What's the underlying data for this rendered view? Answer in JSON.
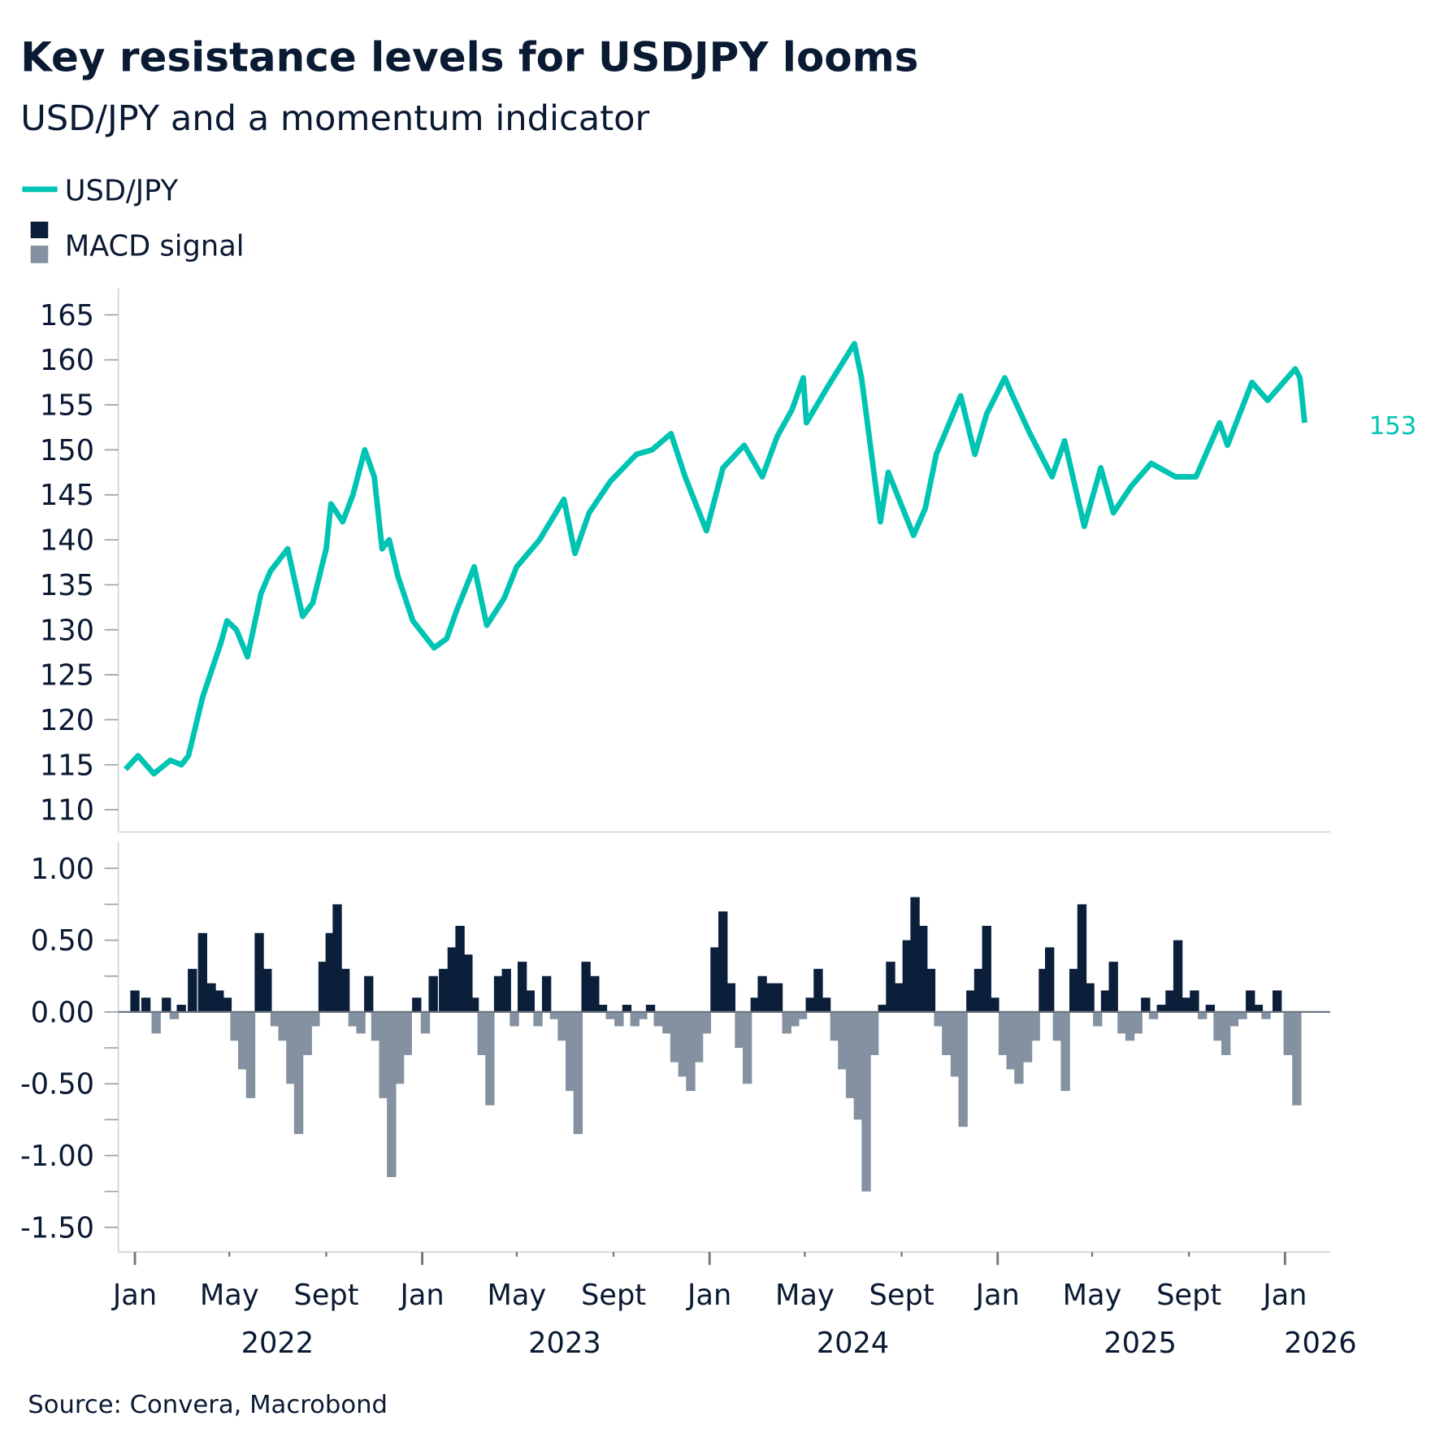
{
  "title": "Key resistance levels for USDJPY looms",
  "subtitle": "USD/JPY and a momentum indicator",
  "source": "Source: Convera, Macrobond",
  "colors": {
    "usdjpy": "#00C4B3",
    "macd_positive": "#0B1F3A",
    "macd_negative": "#8391A0",
    "text": "#0A1A33"
  },
  "chart_data": [
    {
      "type": "line",
      "legend": [
        "USD/JPY"
      ],
      "last_value_label": "153",
      "y_ticks": [
        "165",
        "160",
        "155",
        "150",
        "145",
        "140",
        "135",
        "130",
        "125",
        "120",
        "115",
        "110"
      ],
      "ylim": [
        110,
        165
      ],
      "x_ticks": [
        {
          "label": "Jan",
          "date": "2022-01-01"
        },
        {
          "label": "May",
          "date": "2022-05-01"
        },
        {
          "label": "Sept",
          "date": "2022-09-01"
        },
        {
          "label": "Jan",
          "date": "2023-01-01"
        },
        {
          "label": "May",
          "date": "2023-05-01"
        },
        {
          "label": "Sept",
          "date": "2023-09-01"
        },
        {
          "label": "Jan",
          "date": "2024-01-01"
        },
        {
          "label": "May",
          "date": "2024-05-01"
        },
        {
          "label": "Sept",
          "date": "2024-09-01"
        },
        {
          "label": "Jan",
          "date": "2025-01-01"
        },
        {
          "label": "May",
          "date": "2025-05-01"
        },
        {
          "label": "Sept",
          "date": "2025-09-01"
        },
        {
          "label": "Jan",
          "date": "2026-01-01"
        }
      ],
      "years": [
        {
          "label": "2022",
          "date": "2022-07-01"
        },
        {
          "label": "2023",
          "date": "2023-07-01"
        },
        {
          "label": "2024",
          "date": "2024-07-01"
        },
        {
          "label": "2025",
          "date": "2025-07-01"
        },
        {
          "label": "2026",
          "date": "2026-02-15"
        }
      ],
      "series": [
        {
          "name": "USD/JPY",
          "points": [
            [
              "2021-12-20",
              114.5
            ],
            [
              "2022-01-05",
              116
            ],
            [
              "2022-01-25",
              114
            ],
            [
              "2022-02-15",
              115.5
            ],
            [
              "2022-03-01",
              115
            ],
            [
              "2022-03-10",
              116
            ],
            [
              "2022-03-28",
              122.5
            ],
            [
              "2022-04-20",
              128.5
            ],
            [
              "2022-04-28",
              131
            ],
            [
              "2022-05-10",
              130
            ],
            [
              "2022-05-24",
              127
            ],
            [
              "2022-06-10",
              134
            ],
            [
              "2022-06-22",
              136.5
            ],
            [
              "2022-07-14",
              139
            ],
            [
              "2022-08-02",
              131.5
            ],
            [
              "2022-08-15",
              133
            ],
            [
              "2022-09-01",
              139
            ],
            [
              "2022-09-07",
              144
            ],
            [
              "2022-09-22",
              142
            ],
            [
              "2022-10-05",
              145
            ],
            [
              "2022-10-20",
              150
            ],
            [
              "2022-11-01",
              147
            ],
            [
              "2022-11-11",
              139
            ],
            [
              "2022-11-20",
              140
            ],
            [
              "2022-12-01",
              136
            ],
            [
              "2022-12-20",
              131
            ],
            [
              "2023-01-16",
              128
            ],
            [
              "2023-02-01",
              129
            ],
            [
              "2023-02-13",
              132
            ],
            [
              "2023-03-08",
              137
            ],
            [
              "2023-03-24",
              130.5
            ],
            [
              "2023-04-15",
              133.5
            ],
            [
              "2023-05-01",
              137
            ],
            [
              "2023-05-30",
              140
            ],
            [
              "2023-06-30",
              144.5
            ],
            [
              "2023-07-14",
              138.5
            ],
            [
              "2023-08-01",
              143
            ],
            [
              "2023-08-28",
              146.5
            ],
            [
              "2023-09-30",
              149.5
            ],
            [
              "2023-10-20",
              150
            ],
            [
              "2023-11-13",
              151.8
            ],
            [
              "2023-12-01",
              147
            ],
            [
              "2023-12-28",
              141
            ],
            [
              "2024-01-18",
              148
            ],
            [
              "2024-02-14",
              150.5
            ],
            [
              "2024-03-08",
              147
            ],
            [
              "2024-03-27",
              151.5
            ],
            [
              "2024-04-15",
              154.5
            ],
            [
              "2024-04-29",
              158
            ],
            [
              "2024-05-03",
              153
            ],
            [
              "2024-05-30",
              157
            ],
            [
              "2024-06-26",
              160.8
            ],
            [
              "2024-07-03",
              161.8
            ],
            [
              "2024-07-12",
              158
            ],
            [
              "2024-08-05",
              142
            ],
            [
              "2024-08-15",
              147.5
            ],
            [
              "2024-09-16",
              140.5
            ],
            [
              "2024-10-01",
              143.5
            ],
            [
              "2024-10-15",
              149.5
            ],
            [
              "2024-11-15",
              156
            ],
            [
              "2024-12-03",
              149.5
            ],
            [
              "2024-12-18",
              154
            ],
            [
              "2025-01-10",
              158
            ],
            [
              "2025-01-20",
              156
            ],
            [
              "2025-02-10",
              152
            ],
            [
              "2025-03-11",
              147
            ],
            [
              "2025-03-27",
              151
            ],
            [
              "2025-04-21",
              141.5
            ],
            [
              "2025-05-12",
              148
            ],
            [
              "2025-05-28",
              143
            ],
            [
              "2025-06-20",
              146
            ],
            [
              "2025-07-15",
              148.5
            ],
            [
              "2025-08-15",
              147
            ],
            [
              "2025-09-10",
              147
            ],
            [
              "2025-10-10",
              153
            ],
            [
              "2025-10-20",
              150.5
            ],
            [
              "2025-11-20",
              157.5
            ],
            [
              "2025-12-10",
              155.5
            ],
            [
              "2026-01-14",
              159
            ],
            [
              "2026-01-20",
              158
            ],
            [
              "2026-01-26",
              153
            ]
          ]
        }
      ]
    },
    {
      "type": "bar",
      "legend": [
        "MACD signal"
      ],
      "y_ticks": [
        "1.00",
        "0.50",
        "0.00",
        "-0.50",
        "-1.00",
        "-1.50"
      ],
      "ylim": [
        -1.6,
        1.1
      ],
      "series": [
        {
          "name": "MACD signal",
          "points": [
            [
              "2022-01-01",
              0.15
            ],
            [
              "2022-01-15",
              0.1
            ],
            [
              "2022-01-28",
              -0.15
            ],
            [
              "2022-02-10",
              0.1
            ],
            [
              "2022-02-20",
              -0.05
            ],
            [
              "2022-03-01",
              0.05
            ],
            [
              "2022-03-15",
              0.3
            ],
            [
              "2022-03-28",
              0.55
            ],
            [
              "2022-04-08",
              0.2
            ],
            [
              "2022-04-18",
              0.15
            ],
            [
              "2022-04-28",
              0.1
            ],
            [
              "2022-05-08",
              -0.2
            ],
            [
              "2022-05-18",
              -0.4
            ],
            [
              "2022-05-28",
              -0.6
            ],
            [
              "2022-06-08",
              0.55
            ],
            [
              "2022-06-18",
              0.3
            ],
            [
              "2022-06-28",
              -0.1
            ],
            [
              "2022-07-08",
              -0.2
            ],
            [
              "2022-07-18",
              -0.5
            ],
            [
              "2022-07-28",
              -0.85
            ],
            [
              "2022-08-08",
              -0.3
            ],
            [
              "2022-08-18",
              -0.1
            ],
            [
              "2022-08-28",
              0.35
            ],
            [
              "2022-09-06",
              0.55
            ],
            [
              "2022-09-15",
              0.75
            ],
            [
              "2022-09-25",
              0.3
            ],
            [
              "2022-10-05",
              -0.1
            ],
            [
              "2022-10-15",
              -0.15
            ],
            [
              "2022-10-25",
              0.25
            ],
            [
              "2022-11-03",
              -0.2
            ],
            [
              "2022-11-13",
              -0.6
            ],
            [
              "2022-11-23",
              -1.15
            ],
            [
              "2022-12-03",
              -0.5
            ],
            [
              "2022-12-13",
              -0.3
            ],
            [
              "2022-12-25",
              0.1
            ],
            [
              "2023-01-05",
              -0.15
            ],
            [
              "2023-01-15",
              0.25
            ],
            [
              "2023-01-28",
              0.3
            ],
            [
              "2023-02-08",
              0.45
            ],
            [
              "2023-02-18",
              0.6
            ],
            [
              "2023-02-28",
              0.4
            ],
            [
              "2023-03-08",
              0.1
            ],
            [
              "2023-03-18",
              -0.3
            ],
            [
              "2023-03-28",
              -0.65
            ],
            [
              "2023-04-08",
              0.25
            ],
            [
              "2023-04-18",
              0.3
            ],
            [
              "2023-04-28",
              -0.1
            ],
            [
              "2023-05-08",
              0.35
            ],
            [
              "2023-05-18",
              0.15
            ],
            [
              "2023-05-28",
              -0.1
            ],
            [
              "2023-06-08",
              0.25
            ],
            [
              "2023-06-18",
              -0.05
            ],
            [
              "2023-06-28",
              -0.2
            ],
            [
              "2023-07-08",
              -0.55
            ],
            [
              "2023-07-18",
              -0.85
            ],
            [
              "2023-07-28",
              0.35
            ],
            [
              "2023-08-08",
              0.25
            ],
            [
              "2023-08-18",
              0.05
            ],
            [
              "2023-08-28",
              -0.05
            ],
            [
              "2023-09-08",
              -0.1
            ],
            [
              "2023-09-18",
              0.05
            ],
            [
              "2023-09-28",
              -0.1
            ],
            [
              "2023-10-08",
              -0.05
            ],
            [
              "2023-10-18",
              0.05
            ],
            [
              "2023-10-28",
              -0.1
            ],
            [
              "2023-11-08",
              -0.15
            ],
            [
              "2023-11-18",
              -0.35
            ],
            [
              "2023-11-28",
              -0.45
            ],
            [
              "2023-12-08",
              -0.55
            ],
            [
              "2023-12-18",
              -0.35
            ],
            [
              "2023-12-28",
              -0.15
            ],
            [
              "2024-01-08",
              0.45
            ],
            [
              "2024-01-18",
              0.7
            ],
            [
              "2024-01-28",
              0.2
            ],
            [
              "2024-02-08",
              -0.25
            ],
            [
              "2024-02-18",
              -0.5
            ],
            [
              "2024-02-28",
              0.1
            ],
            [
              "2024-03-08",
              0.25
            ],
            [
              "2024-03-18",
              0.2
            ],
            [
              "2024-03-28",
              0.2
            ],
            [
              "2024-04-08",
              -0.15
            ],
            [
              "2024-04-18",
              -0.1
            ],
            [
              "2024-04-28",
              -0.05
            ],
            [
              "2024-05-08",
              0.1
            ],
            [
              "2024-05-18",
              0.3
            ],
            [
              "2024-05-28",
              0.1
            ],
            [
              "2024-06-08",
              -0.2
            ],
            [
              "2024-06-18",
              -0.4
            ],
            [
              "2024-06-28",
              -0.6
            ],
            [
              "2024-07-08",
              -0.75
            ],
            [
              "2024-07-18",
              -1.25
            ],
            [
              "2024-07-28",
              -0.3
            ],
            [
              "2024-08-08",
              0.05
            ],
            [
              "2024-08-18",
              0.35
            ],
            [
              "2024-08-28",
              0.2
            ],
            [
              "2024-09-08",
              0.5
            ],
            [
              "2024-09-18",
              0.8
            ],
            [
              "2024-09-28",
              0.6
            ],
            [
              "2024-10-08",
              0.3
            ],
            [
              "2024-10-18",
              -0.1
            ],
            [
              "2024-10-28",
              -0.3
            ],
            [
              "2024-11-08",
              -0.45
            ],
            [
              "2024-11-18",
              -0.8
            ],
            [
              "2024-11-28",
              0.15
            ],
            [
              "2024-12-08",
              0.3
            ],
            [
              "2024-12-18",
              0.6
            ],
            [
              "2024-12-28",
              0.1
            ],
            [
              "2025-01-08",
              -0.3
            ],
            [
              "2025-01-18",
              -0.4
            ],
            [
              "2025-01-28",
              -0.5
            ],
            [
              "2025-02-08",
              -0.35
            ],
            [
              "2025-02-18",
              -0.2
            ],
            [
              "2025-02-28",
              0.3
            ],
            [
              "2025-03-08",
              0.45
            ],
            [
              "2025-03-18",
              -0.2
            ],
            [
              "2025-03-28",
              -0.55
            ],
            [
              "2025-04-08",
              0.3
            ],
            [
              "2025-04-18",
              0.75
            ],
            [
              "2025-04-28",
              0.2
            ],
            [
              "2025-05-08",
              -0.1
            ],
            [
              "2025-05-18",
              0.15
            ],
            [
              "2025-05-28",
              0.35
            ],
            [
              "2025-06-08",
              -0.15
            ],
            [
              "2025-06-18",
              -0.2
            ],
            [
              "2025-06-28",
              -0.15
            ],
            [
              "2025-07-08",
              0.1
            ],
            [
              "2025-07-18",
              -0.05
            ],
            [
              "2025-07-28",
              0.05
            ],
            [
              "2025-08-08",
              0.15
            ],
            [
              "2025-08-18",
              0.5
            ],
            [
              "2025-08-28",
              0.1
            ],
            [
              "2025-09-08",
              0.15
            ],
            [
              "2025-09-18",
              -0.05
            ],
            [
              "2025-09-28",
              0.05
            ],
            [
              "2025-10-08",
              -0.2
            ],
            [
              "2025-10-18",
              -0.3
            ],
            [
              "2025-10-28",
              -0.1
            ],
            [
              "2025-11-08",
              -0.05
            ],
            [
              "2025-11-18",
              0.15
            ],
            [
              "2025-11-28",
              0.05
            ],
            [
              "2025-12-08",
              -0.05
            ],
            [
              "2025-12-22",
              0.15
            ],
            [
              "2026-01-05",
              -0.3
            ],
            [
              "2026-01-16",
              -0.65
            ]
          ]
        }
      ]
    }
  ]
}
